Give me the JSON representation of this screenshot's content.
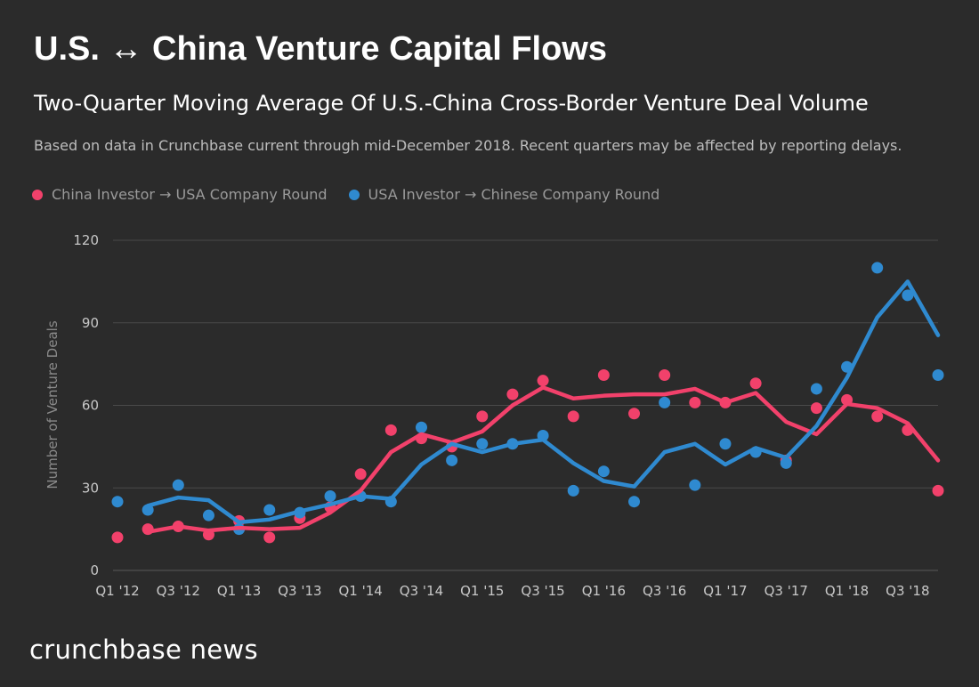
{
  "title": "U.S. ↔ China Venture Capital Flows",
  "subtitle": "Two-Quarter Moving Average Of U.S.-China Cross-Border Venture Deal Volume",
  "note": "Based on data in Crunchbase current through mid-December 2018. Recent quarters may be affected by reporting delays.",
  "brand": "crunchbase news",
  "colors": {
    "background": "#2b2b2b",
    "china_to_usa": "#f2416b",
    "usa_to_china": "#2f8ad0",
    "grid": "#4a4a4a",
    "tick_text": "#c8c8c8",
    "axis_label": "#8a8a8a"
  },
  "chart_data": {
    "type": "scatter",
    "ylabel": "Number of Venture Deals",
    "ylim": [
      0,
      120
    ],
    "yticks": [
      0,
      30,
      60,
      90,
      120
    ],
    "x": [
      "Q1 '12",
      "Q2 '12",
      "Q3 '12",
      "Q4 '12",
      "Q1 '13",
      "Q2 '13",
      "Q3 '13",
      "Q4 '13",
      "Q1 '14",
      "Q2 '14",
      "Q3 '14",
      "Q4 '14",
      "Q1 '15",
      "Q2 '15",
      "Q3 '15",
      "Q4 '15",
      "Q1 '16",
      "Q2 '16",
      "Q3 '16",
      "Q4 '16",
      "Q1 '17",
      "Q2 '17",
      "Q3 '17",
      "Q4 '17",
      "Q1 '18",
      "Q2 '18",
      "Q3 '18",
      "Q4 '18"
    ],
    "xtick_labels": [
      "Q1 '12",
      "Q3 '12",
      "Q1 '13",
      "Q3 '13",
      "Q1 '14",
      "Q3 '14",
      "Q1 '15",
      "Q3 '15",
      "Q1 '16",
      "Q3 '16",
      "Q1 '17",
      "Q3 '17",
      "Q1 '18",
      "Q3 '18"
    ],
    "grid": true,
    "legend_position": "top-left",
    "series": [
      {
        "name": "China Investor → USA Company Round",
        "color": "#f2416b",
        "points": [
          12,
          15,
          16,
          13,
          18,
          12,
          19,
          23,
          35,
          51,
          48,
          45,
          56,
          64,
          69,
          56,
          71,
          57,
          71,
          61,
          61,
          68,
          40,
          59,
          62,
          56,
          51,
          29
        ],
        "moving_average": [
          null,
          14,
          16,
          14.5,
          15.5,
          15,
          15.5,
          21,
          29,
          43,
          49.5,
          46.5,
          50.5,
          60,
          66.5,
          62.5,
          63.5,
          64,
          64,
          66,
          61,
          64.5,
          54,
          49.5,
          60.5,
          59,
          53.5,
          40
        ]
      },
      {
        "name": "USA Investor → Chinese Company Round",
        "color": "#2f8ad0",
        "points": [
          25,
          22,
          31,
          20,
          15,
          22,
          21,
          27,
          27,
          25,
          52,
          40,
          46,
          46,
          49,
          29,
          36,
          25,
          61,
          31,
          46,
          43,
          39,
          66,
          74,
          110,
          100,
          71
        ],
        "moving_average": [
          null,
          23.5,
          26.5,
          25.5,
          17.5,
          18.5,
          21.5,
          24,
          27,
          26,
          38.5,
          46,
          43,
          46,
          47.5,
          39,
          32.5,
          30.5,
          43,
          46,
          38.5,
          44.5,
          41,
          52.5,
          70,
          92,
          105,
          85.5
        ]
      }
    ]
  }
}
